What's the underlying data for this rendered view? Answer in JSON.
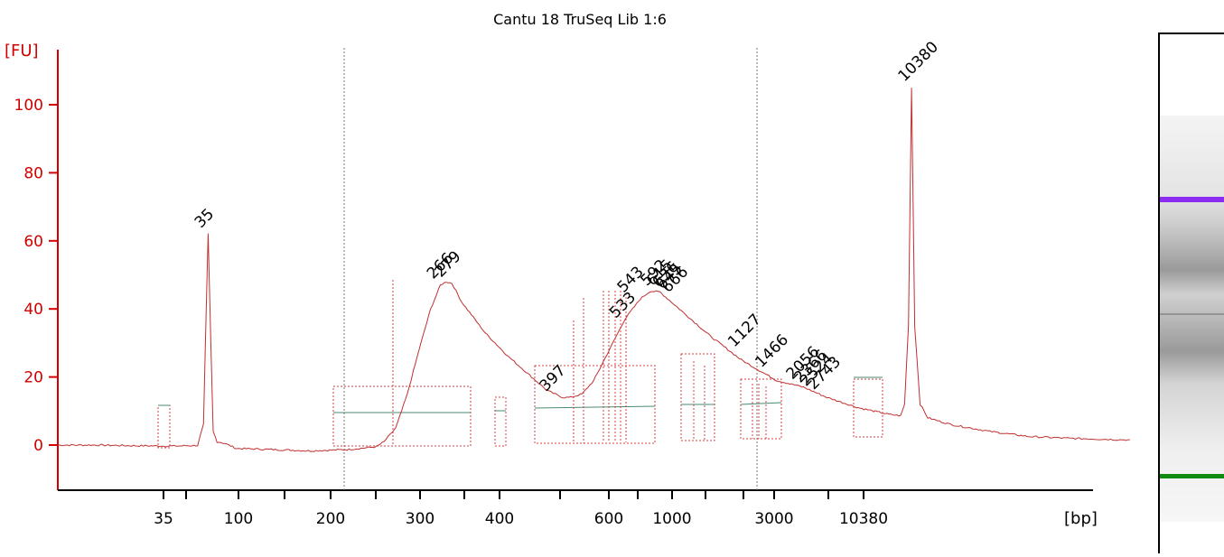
{
  "chart_data": {
    "type": "line",
    "title": "Cantu 18 TruSeq Lib 1:6",
    "ylabel": "[FU]",
    "xlabel": "[bp]",
    "ylim": [
      -13,
      117
    ],
    "yticks": [
      0,
      20,
      40,
      60,
      80,
      100
    ],
    "xticks": [
      "35",
      "100",
      "200",
      "300",
      "400",
      "600",
      "1000",
      "3000",
      "10380"
    ],
    "grid": false,
    "series": [
      {
        "points": [
          [
            0,
            0
          ],
          [
            10,
            0
          ],
          [
            20,
            -0.2
          ],
          [
            30,
            -0.3
          ],
          [
            36,
            -0.1
          ],
          [
            37.5,
            6
          ],
          [
            38,
            30
          ],
          [
            38.7,
            62
          ],
          [
            39.4,
            30
          ],
          [
            40,
            4
          ],
          [
            41,
            1
          ],
          [
            43,
            0.5
          ],
          [
            46,
            -1
          ],
          [
            55,
            -1.3
          ],
          [
            65,
            -1.7
          ],
          [
            75,
            -1.3
          ],
          [
            82,
            -0.5
          ],
          [
            84,
            1
          ],
          [
            87,
            5
          ],
          [
            90,
            15
          ],
          [
            93,
            28
          ],
          [
            96,
            40
          ],
          [
            98.5,
            47
          ],
          [
            100,
            48
          ],
          [
            101.5,
            47.5
          ],
          [
            104,
            42
          ],
          [
            110,
            33
          ],
          [
            116,
            26
          ],
          [
            122,
            20
          ],
          [
            126,
            16
          ],
          [
            130,
            14
          ],
          [
            132,
            14
          ],
          [
            135,
            15
          ],
          [
            138,
            19
          ],
          [
            142,
            28
          ],
          [
            146,
            37
          ],
          [
            150,
            43
          ],
          [
            152.5,
            45.2
          ],
          [
            155,
            45
          ],
          [
            158,
            42
          ],
          [
            162,
            38
          ],
          [
            168,
            32
          ],
          [
            176,
            25
          ],
          [
            185,
            19
          ],
          [
            192,
            17
          ],
          [
            198,
            14
          ],
          [
            206,
            11
          ],
          [
            214,
            9
          ],
          [
            217,
            8.6
          ],
          [
            218,
            12
          ],
          [
            219,
            35
          ],
          [
            219.8,
            105
          ],
          [
            220.6,
            35
          ],
          [
            222,
            12
          ],
          [
            224,
            8
          ],
          [
            230,
            6
          ],
          [
            240,
            4
          ],
          [
            250,
            2.5
          ],
          [
            260,
            2
          ],
          [
            276,
            1.5
          ]
        ]
      }
    ],
    "peaks": [
      {
        "label": "35",
        "x": 38.7,
        "y": 62,
        "color": "#1a7f1a"
      },
      {
        "label": "266",
        "x": 98.5,
        "y": 47,
        "color": "#000000"
      },
      {
        "label": "279",
        "x": 100.5,
        "y": 47.5,
        "color": "#000000"
      },
      {
        "label": "397",
        "x": 127.5,
        "y": 14,
        "color": "#000000"
      },
      {
        "label": "533",
        "x": 145.5,
        "y": 35.5,
        "color": "#000000"
      },
      {
        "label": "543",
        "x": 147.5,
        "y": 43,
        "color": "#000000"
      },
      {
        "label": "592",
        "x": 153.5,
        "y": 45,
        "color": "#000000"
      },
      {
        "label": "615",
        "x": 155,
        "y": 45,
        "color": "#000000"
      },
      {
        "label": "636",
        "x": 156.5,
        "y": 44.5,
        "color": "#000000"
      },
      {
        "label": "645",
        "x": 157.5,
        "y": 44,
        "color": "#000000"
      },
      {
        "label": "666",
        "x": 159,
        "y": 43,
        "color": "#000000"
      },
      {
        "label": "1127",
        "x": 176,
        "y": 27,
        "color": "#000000"
      },
      {
        "label": "1466",
        "x": 183,
        "y": 21,
        "color": "#000000"
      },
      {
        "label": "2056",
        "x": 191,
        "y": 17.5,
        "color": "#000000"
      },
      {
        "label": "2366",
        "x": 193,
        "y": 16.5,
        "color": "#000000"
      },
      {
        "label": "2524",
        "x": 194.5,
        "y": 15.5,
        "color": "#000000"
      },
      {
        "label": "2743",
        "x": 196.5,
        "y": 14.5,
        "color": "#000000"
      },
      {
        "label": "10380",
        "x": 219.8,
        "y": 105,
        "color": "#9b30d9"
      }
    ],
    "gel": {
      "upper_marker_color": "#8b2cf0",
      "lower_marker_color": "#108a10"
    }
  }
}
